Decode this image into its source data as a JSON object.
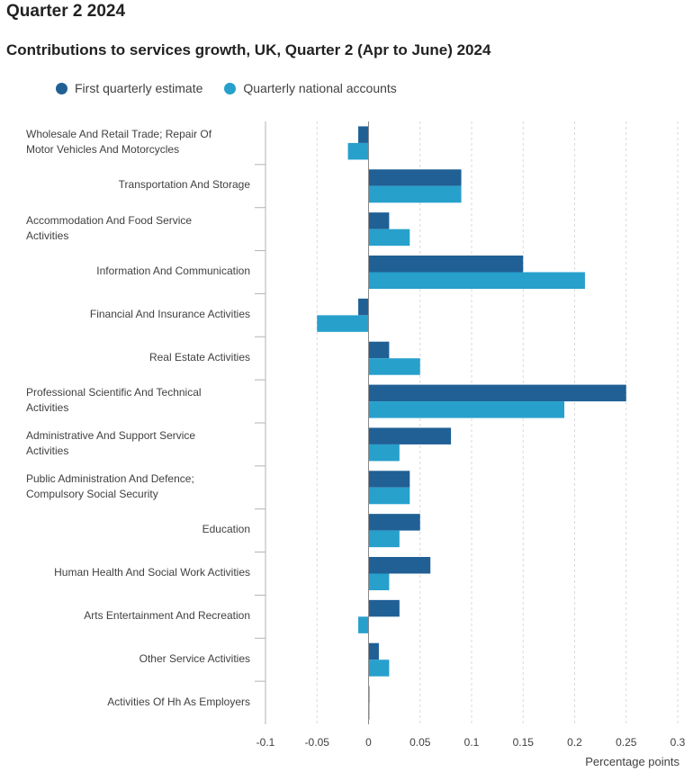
{
  "page": {
    "heading": "Quarter 2 2024"
  },
  "colors": {
    "series1": "#206095",
    "series2": "#27a0cc",
    "grid": "#d9d9d9",
    "axis": "#b3b3b3",
    "text": "#414042"
  },
  "chart_data": {
    "type": "bar",
    "orientation": "horizontal",
    "title": "Contributions to services growth, UK, Quarter 2 (Apr to June) 2024",
    "xlabel": "Percentage points",
    "ylabel": "",
    "xlim": [
      -0.1,
      0.3
    ],
    "xticks": [
      -0.1,
      -0.05,
      0,
      0.05,
      0.1,
      0.15,
      0.2,
      0.25,
      0.3
    ],
    "xtick_labels": [
      "-0.1",
      "-0.05",
      "0",
      "0.05",
      "0.1",
      "0.15",
      "0.2",
      "0.25",
      "0.3"
    ],
    "grid": true,
    "legend_position": "top-left",
    "categories": [
      "Wholesale And Retail Trade; Repair Of Motor Vehicles And Motorcycles",
      "Transportation And Storage",
      "Accommodation And Food Service Activities",
      "Information And Communication",
      "Financial And Insurance Activities",
      "Real Estate Activities",
      "Professional Scientific And Technical Activities",
      "Administrative And Support Service Activities",
      "Public Administration And Defence; Compulsory Social Security",
      "Education",
      "Human Health And Social Work Activities",
      "Arts Entertainment And Recreation",
      "Other Service Activities",
      "Activities Of Hh As Employers"
    ],
    "category_lines": [
      [
        "Wholesale And Retail Trade; Repair Of",
        "Motor Vehicles And Motorcycles"
      ],
      [
        "Transportation And Storage"
      ],
      [
        "Accommodation And Food Service",
        "Activities"
      ],
      [
        "Information And Communication"
      ],
      [
        "Financial And Insurance Activities"
      ],
      [
        "Real Estate Activities"
      ],
      [
        "Professional Scientific And Technical",
        "Activities"
      ],
      [
        "Administrative And Support Service",
        "Activities"
      ],
      [
        "Public Administration And Defence;",
        "Compulsory Social Security"
      ],
      [
        "Education"
      ],
      [
        "Human Health And Social Work Activities"
      ],
      [
        "Arts Entertainment And Recreation"
      ],
      [
        "Other Service Activities"
      ],
      [
        "Activities Of Hh As Employers"
      ]
    ],
    "series": [
      {
        "name": "First quarterly estimate",
        "values": [
          -0.01,
          0.09,
          0.02,
          0.15,
          -0.01,
          0.02,
          0.25,
          0.08,
          0.04,
          0.05,
          0.06,
          0.03,
          0.01,
          0.0
        ]
      },
      {
        "name": "Quarterly national accounts",
        "values": [
          -0.02,
          0.09,
          0.04,
          0.21,
          -0.05,
          0.05,
          0.19,
          0.03,
          0.04,
          0.03,
          0.02,
          -0.01,
          0.02,
          0.0
        ]
      }
    ]
  }
}
